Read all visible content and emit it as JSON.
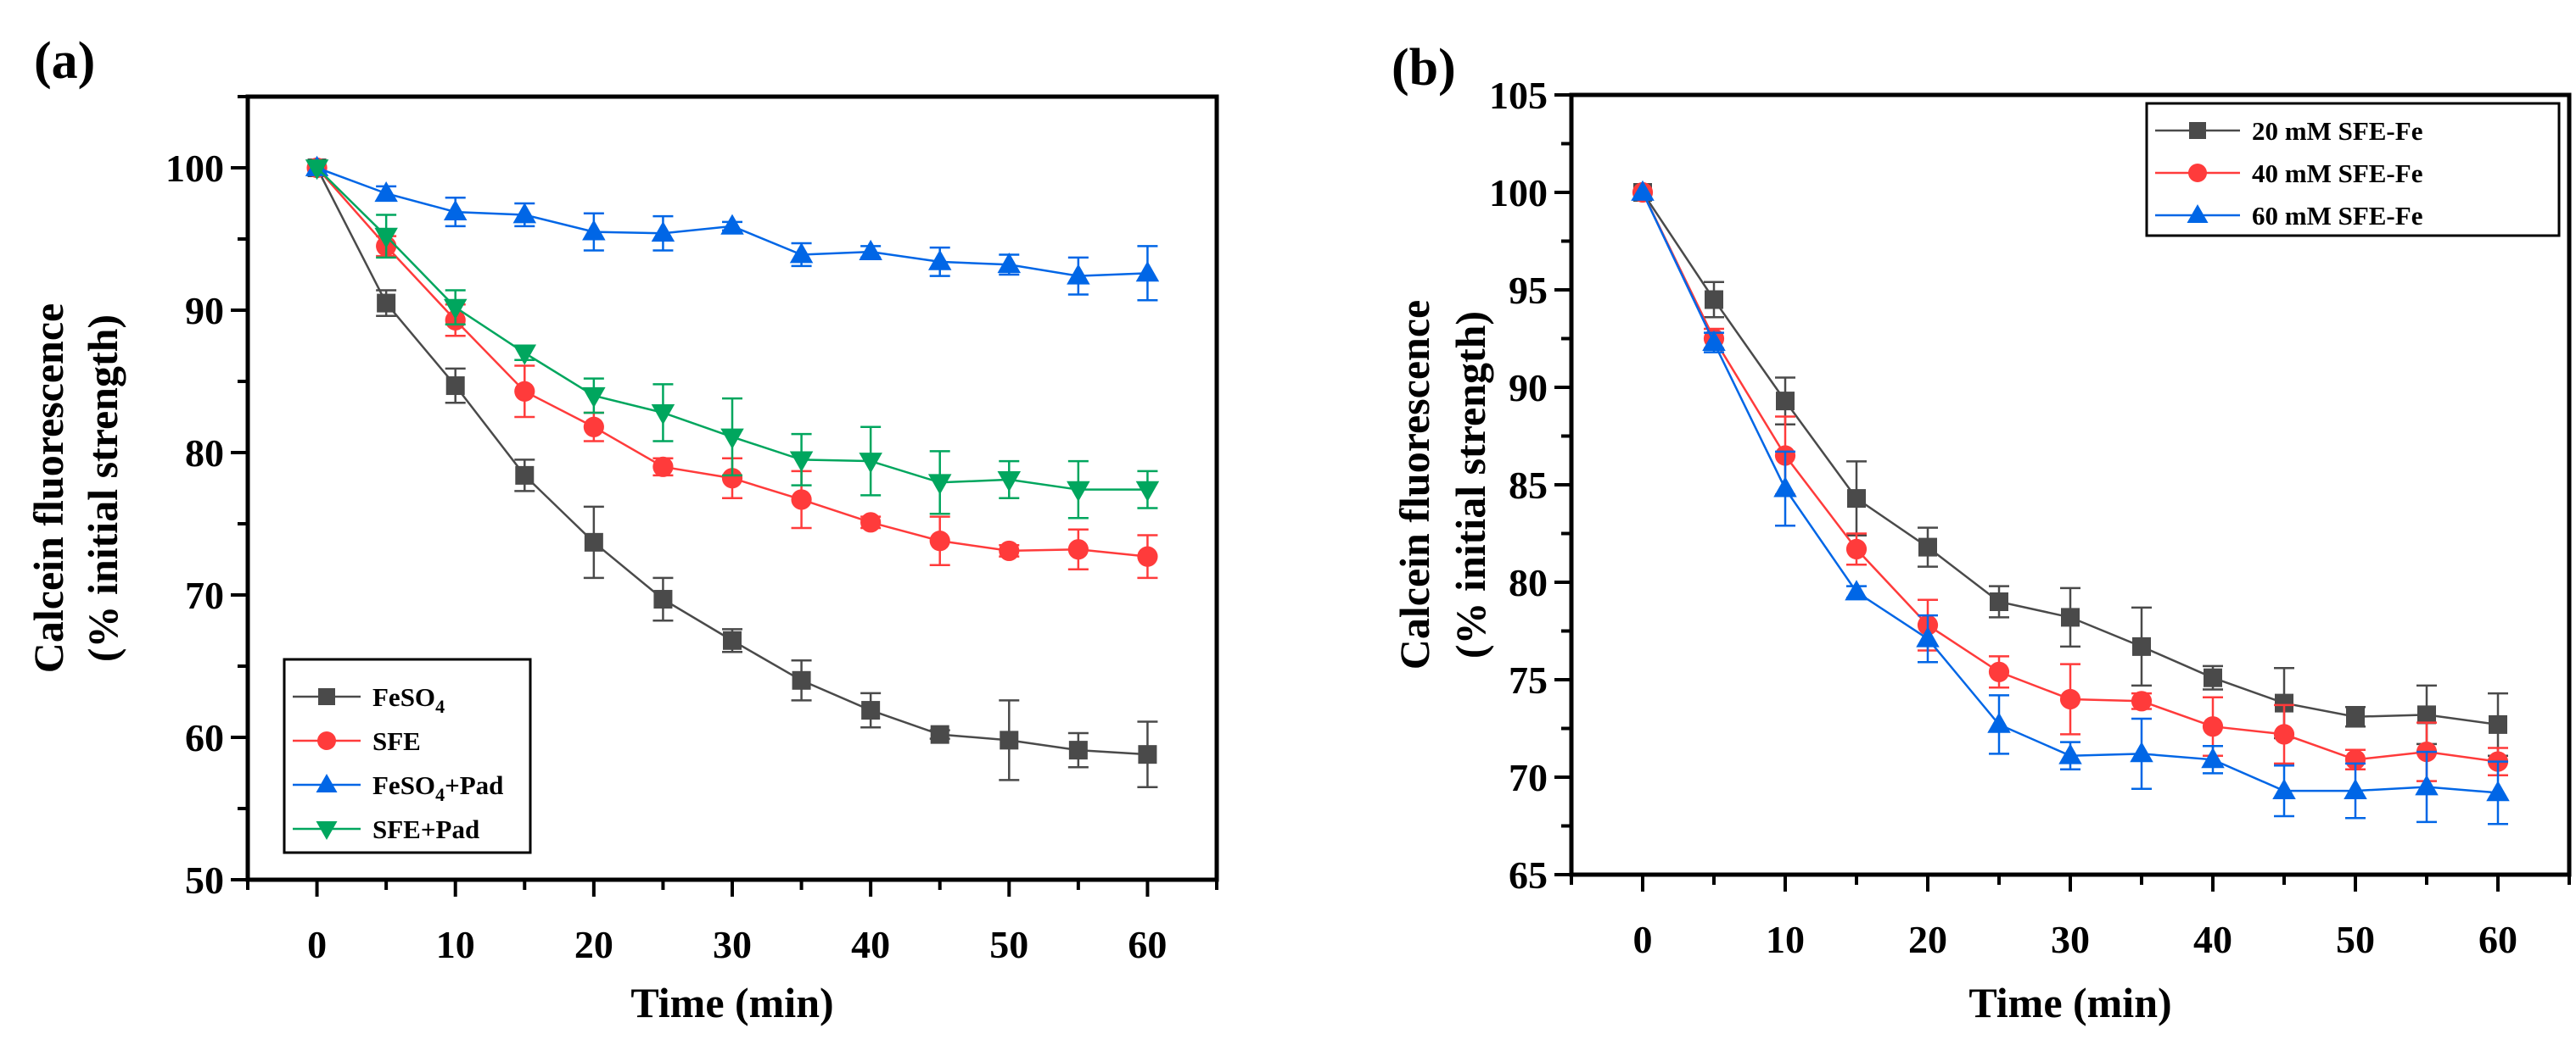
{
  "chart_data": [
    {
      "type": "line",
      "panel_label": "(a)",
      "xlabel": "Time (min)",
      "ylabel_line1": "Calcein fluorescence",
      "ylabel_line2": "(% initial strength)",
      "xlim": [
        -5,
        65
      ],
      "ylim": [
        50,
        105
      ],
      "xticks": [
        0,
        10,
        20,
        30,
        40,
        50,
        60
      ],
      "yticks": [
        50,
        60,
        70,
        80,
        90,
        100
      ],
      "x": [
        0,
        5,
        10,
        15,
        20,
        25,
        30,
        35,
        40,
        45,
        50,
        55,
        60
      ],
      "legend_position": "bottom-left",
      "series": [
        {
          "name": "FeSO4",
          "label_main": "FeSO",
          "label_sub": "4",
          "label_suffix": "",
          "color": "#4a4a4a",
          "marker": "square",
          "values": [
            100,
            90.5,
            84.7,
            78.4,
            73.7,
            69.7,
            66.8,
            64.0,
            61.9,
            60.2,
            59.8,
            59.1,
            58.8
          ],
          "errors": [
            0,
            0.9,
            1.2,
            1.1,
            2.5,
            1.5,
            0.8,
            1.4,
            1.2,
            0.3,
            2.8,
            1.2,
            2.3
          ]
        },
        {
          "name": "SFE",
          "label_main": "SFE",
          "label_sub": "",
          "label_suffix": "",
          "color": "#ff3b3b",
          "marker": "circle",
          "values": [
            100,
            94.5,
            89.3,
            84.3,
            81.8,
            79.0,
            78.2,
            76.7,
            75.1,
            73.8,
            73.1,
            73.2,
            72.7
          ],
          "errors": [
            0,
            0.7,
            1.1,
            1.8,
            1.0,
            0.6,
            1.4,
            2.0,
            0.4,
            1.7,
            0.4,
            1.4,
            1.5
          ]
        },
        {
          "name": "FeSO4+Pad",
          "label_main": "FeSO",
          "label_sub": "4",
          "label_suffix": "+Pad",
          "color": "#0066e6",
          "marker": "triangle-up",
          "values": [
            100,
            98.2,
            96.9,
            96.7,
            95.5,
            95.4,
            95.9,
            93.9,
            94.1,
            93.4,
            93.2,
            92.4,
            92.6
          ],
          "errors": [
            0,
            0.5,
            1.0,
            0.8,
            1.3,
            1.2,
            0.3,
            0.8,
            0.4,
            1.0,
            0.7,
            1.3,
            1.9
          ]
        },
        {
          "name": "SFE+Pad",
          "label_main": "SFE+Pad",
          "label_sub": "",
          "label_suffix": "",
          "color": "#00a65e",
          "marker": "triangle-down",
          "values": [
            100,
            95.2,
            90.2,
            87.0,
            84.0,
            82.8,
            81.1,
            79.5,
            79.4,
            77.9,
            78.1,
            77.4,
            77.4
          ],
          "errors": [
            0,
            1.5,
            1.2,
            0.5,
            1.2,
            2.0,
            2.7,
            1.8,
            2.4,
            2.2,
            1.3,
            2.0,
            1.3
          ]
        }
      ]
    },
    {
      "type": "line",
      "panel_label": "(b)",
      "xlabel": "Time (min)",
      "ylabel_line1": "Calcein fluorescence",
      "ylabel_line2": "(% initial strength)",
      "xlim": [
        -5,
        65
      ],
      "ylim": [
        65,
        105
      ],
      "xticks": [
        0,
        10,
        20,
        30,
        40,
        50,
        60
      ],
      "yticks": [
        65,
        70,
        75,
        80,
        85,
        90,
        95,
        100,
        105
      ],
      "x": [
        0,
        5,
        10,
        15,
        20,
        25,
        30,
        35,
        40,
        45,
        50,
        55,
        60
      ],
      "legend_position": "top-right",
      "series": [
        {
          "name": "20 mM SFE-Fe",
          "label_main": "20 mM SFE-Fe",
          "label_sub": "",
          "label_suffix": "",
          "color": "#4a4a4a",
          "marker": "square",
          "values": [
            100,
            94.5,
            89.3,
            84.3,
            81.8,
            79.0,
            78.2,
            76.7,
            75.1,
            73.8,
            73.1,
            73.2,
            72.7
          ],
          "errors": [
            0,
            0.9,
            1.2,
            1.9,
            1.0,
            0.8,
            1.5,
            2.0,
            0.6,
            1.8,
            0.5,
            1.5,
            1.6
          ]
        },
        {
          "name": "40 mM SFE-Fe",
          "label_main": "40 mM SFE-Fe",
          "label_sub": "",
          "label_suffix": "",
          "color": "#ff3b3b",
          "marker": "circle",
          "values": [
            100,
            92.5,
            86.5,
            81.7,
            77.8,
            75.4,
            74.0,
            73.9,
            72.6,
            72.2,
            70.9,
            71.3,
            70.8
          ],
          "errors": [
            0,
            0.5,
            2.0,
            0.8,
            1.3,
            0.8,
            1.8,
            0.4,
            1.5,
            1.5,
            0.5,
            1.5,
            0.7
          ]
        },
        {
          "name": "60 mM SFE-Fe",
          "label_main": "60 mM SFE-Fe",
          "label_sub": "",
          "label_suffix": "",
          "color": "#0066e6",
          "marker": "triangle-up",
          "values": [
            100,
            92.3,
            84.8,
            79.5,
            77.1,
            72.7,
            71.1,
            71.2,
            70.9,
            69.3,
            69.3,
            69.5,
            69.2
          ],
          "errors": [
            0,
            0.5,
            1.9,
            0.3,
            1.2,
            1.5,
            0.7,
            1.8,
            0.7,
            1.3,
            1.4,
            1.8,
            1.6
          ]
        }
      ]
    }
  ]
}
